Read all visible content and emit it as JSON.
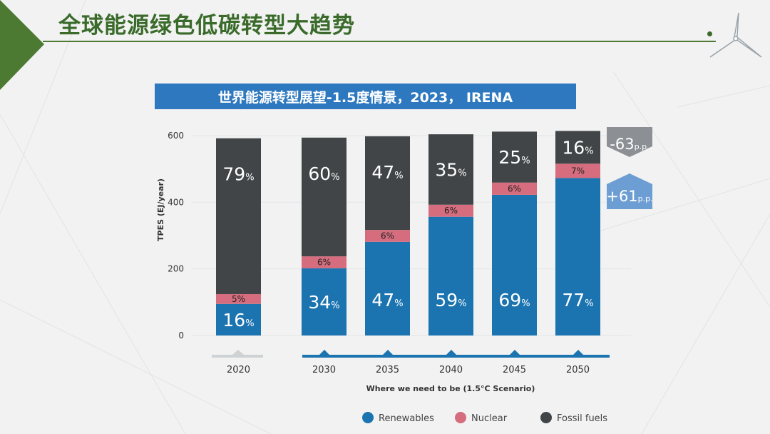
{
  "slide": {
    "title": "全球能源绿色低碳转型大趋势",
    "banner": "世界能源转型展望-1.5度情景，2023， IRENA"
  },
  "colors": {
    "renewables": "#1b73b0",
    "nuclear": "#d56d7e",
    "fossil": "#414548",
    "title_green": "#3a6b2b",
    "banner_blue": "#2d78bf"
  },
  "chart_data": {
    "type": "bar",
    "stacked": true,
    "ylabel": "TPES (EJ/year)",
    "xlabel": "Where we need to be (1.5°C Scenario)",
    "ylim": [
      0,
      650
    ],
    "yticks": [
      0,
      200,
      400,
      600
    ],
    "grid": true,
    "legend_position": "bottom",
    "categories": [
      "2020",
      "2030",
      "2035",
      "2040",
      "2045",
      "2050"
    ],
    "totals": [
      592,
      594,
      598,
      604,
      612,
      614
    ],
    "series": [
      {
        "name": "Renewables",
        "color": "#1b73b0",
        "shares": [
          16,
          34,
          47,
          59,
          69,
          77
        ],
        "labels": [
          "16%",
          "34%",
          "47%",
          "59%",
          "69%",
          "77%"
        ]
      },
      {
        "name": "Nuclear",
        "color": "#d56d7e",
        "shares": [
          5,
          6,
          6,
          6,
          6,
          7
        ],
        "labels": [
          "5%",
          "6%",
          "6%",
          "6%",
          "6%",
          "7%"
        ]
      },
      {
        "name": "Fossil fuels",
        "color": "#414548",
        "shares": [
          79,
          60,
          47,
          35,
          25,
          16
        ],
        "labels": [
          "79%",
          "60%",
          "47%",
          "35%",
          "25%",
          "16%"
        ]
      }
    ],
    "annotations": [
      {
        "text": "-63p.p.",
        "direction": "down",
        "series": "Fossil fuels"
      },
      {
        "text": "+61p.p.",
        "direction": "up",
        "series": "Renewables"
      }
    ]
  }
}
